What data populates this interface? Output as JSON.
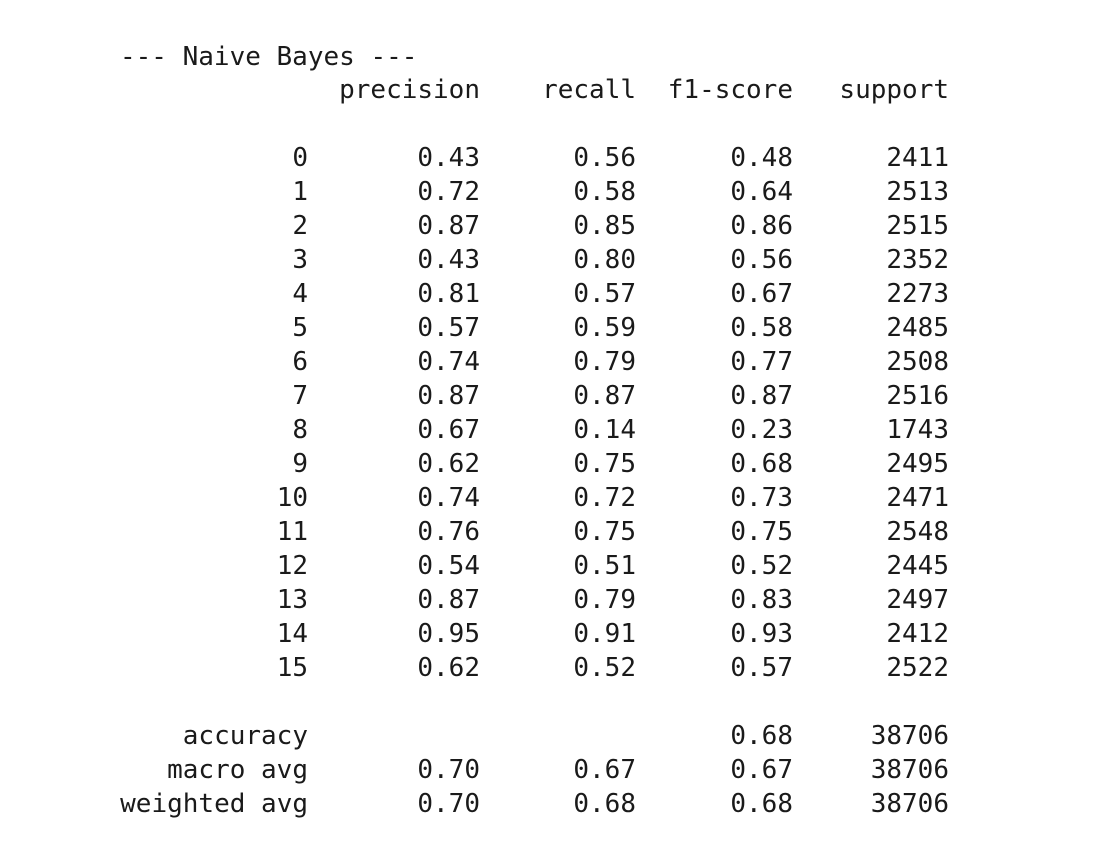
{
  "title": "--- Naive Bayes ---",
  "headers": {
    "precision": "precision",
    "recall": "recall",
    "f1": "f1-score",
    "support": "support"
  },
  "rows": [
    {
      "label": "0",
      "precision": "0.43",
      "recall": "0.56",
      "f1": "0.48",
      "support": "2411"
    },
    {
      "label": "1",
      "precision": "0.72",
      "recall": "0.58",
      "f1": "0.64",
      "support": "2513"
    },
    {
      "label": "2",
      "precision": "0.87",
      "recall": "0.85",
      "f1": "0.86",
      "support": "2515"
    },
    {
      "label": "3",
      "precision": "0.43",
      "recall": "0.80",
      "f1": "0.56",
      "support": "2352"
    },
    {
      "label": "4",
      "precision": "0.81",
      "recall": "0.57",
      "f1": "0.67",
      "support": "2273"
    },
    {
      "label": "5",
      "precision": "0.57",
      "recall": "0.59",
      "f1": "0.58",
      "support": "2485"
    },
    {
      "label": "6",
      "precision": "0.74",
      "recall": "0.79",
      "f1": "0.77",
      "support": "2508"
    },
    {
      "label": "7",
      "precision": "0.87",
      "recall": "0.87",
      "f1": "0.87",
      "support": "2516"
    },
    {
      "label": "8",
      "precision": "0.67",
      "recall": "0.14",
      "f1": "0.23",
      "support": "1743"
    },
    {
      "label": "9",
      "precision": "0.62",
      "recall": "0.75",
      "f1": "0.68",
      "support": "2495"
    },
    {
      "label": "10",
      "precision": "0.74",
      "recall": "0.72",
      "f1": "0.73",
      "support": "2471"
    },
    {
      "label": "11",
      "precision": "0.76",
      "recall": "0.75",
      "f1": "0.75",
      "support": "2548"
    },
    {
      "label": "12",
      "precision": "0.54",
      "recall": "0.51",
      "f1": "0.52",
      "support": "2445"
    },
    {
      "label": "13",
      "precision": "0.87",
      "recall": "0.79",
      "f1": "0.83",
      "support": "2497"
    },
    {
      "label": "14",
      "precision": "0.95",
      "recall": "0.91",
      "f1": "0.93",
      "support": "2412"
    },
    {
      "label": "15",
      "precision": "0.62",
      "recall": "0.52",
      "f1": "0.57",
      "support": "2522"
    }
  ],
  "summary": {
    "accuracy": {
      "label": "accuracy",
      "f1": "0.68",
      "support": "38706"
    },
    "macro": {
      "label": "macro avg",
      "precision": "0.70",
      "recall": "0.67",
      "f1": "0.67",
      "support": "38706"
    },
    "weighted": {
      "label": "weighted avg",
      "precision": "0.70",
      "recall": "0.68",
      "f1": "0.68",
      "support": "38706"
    }
  }
}
